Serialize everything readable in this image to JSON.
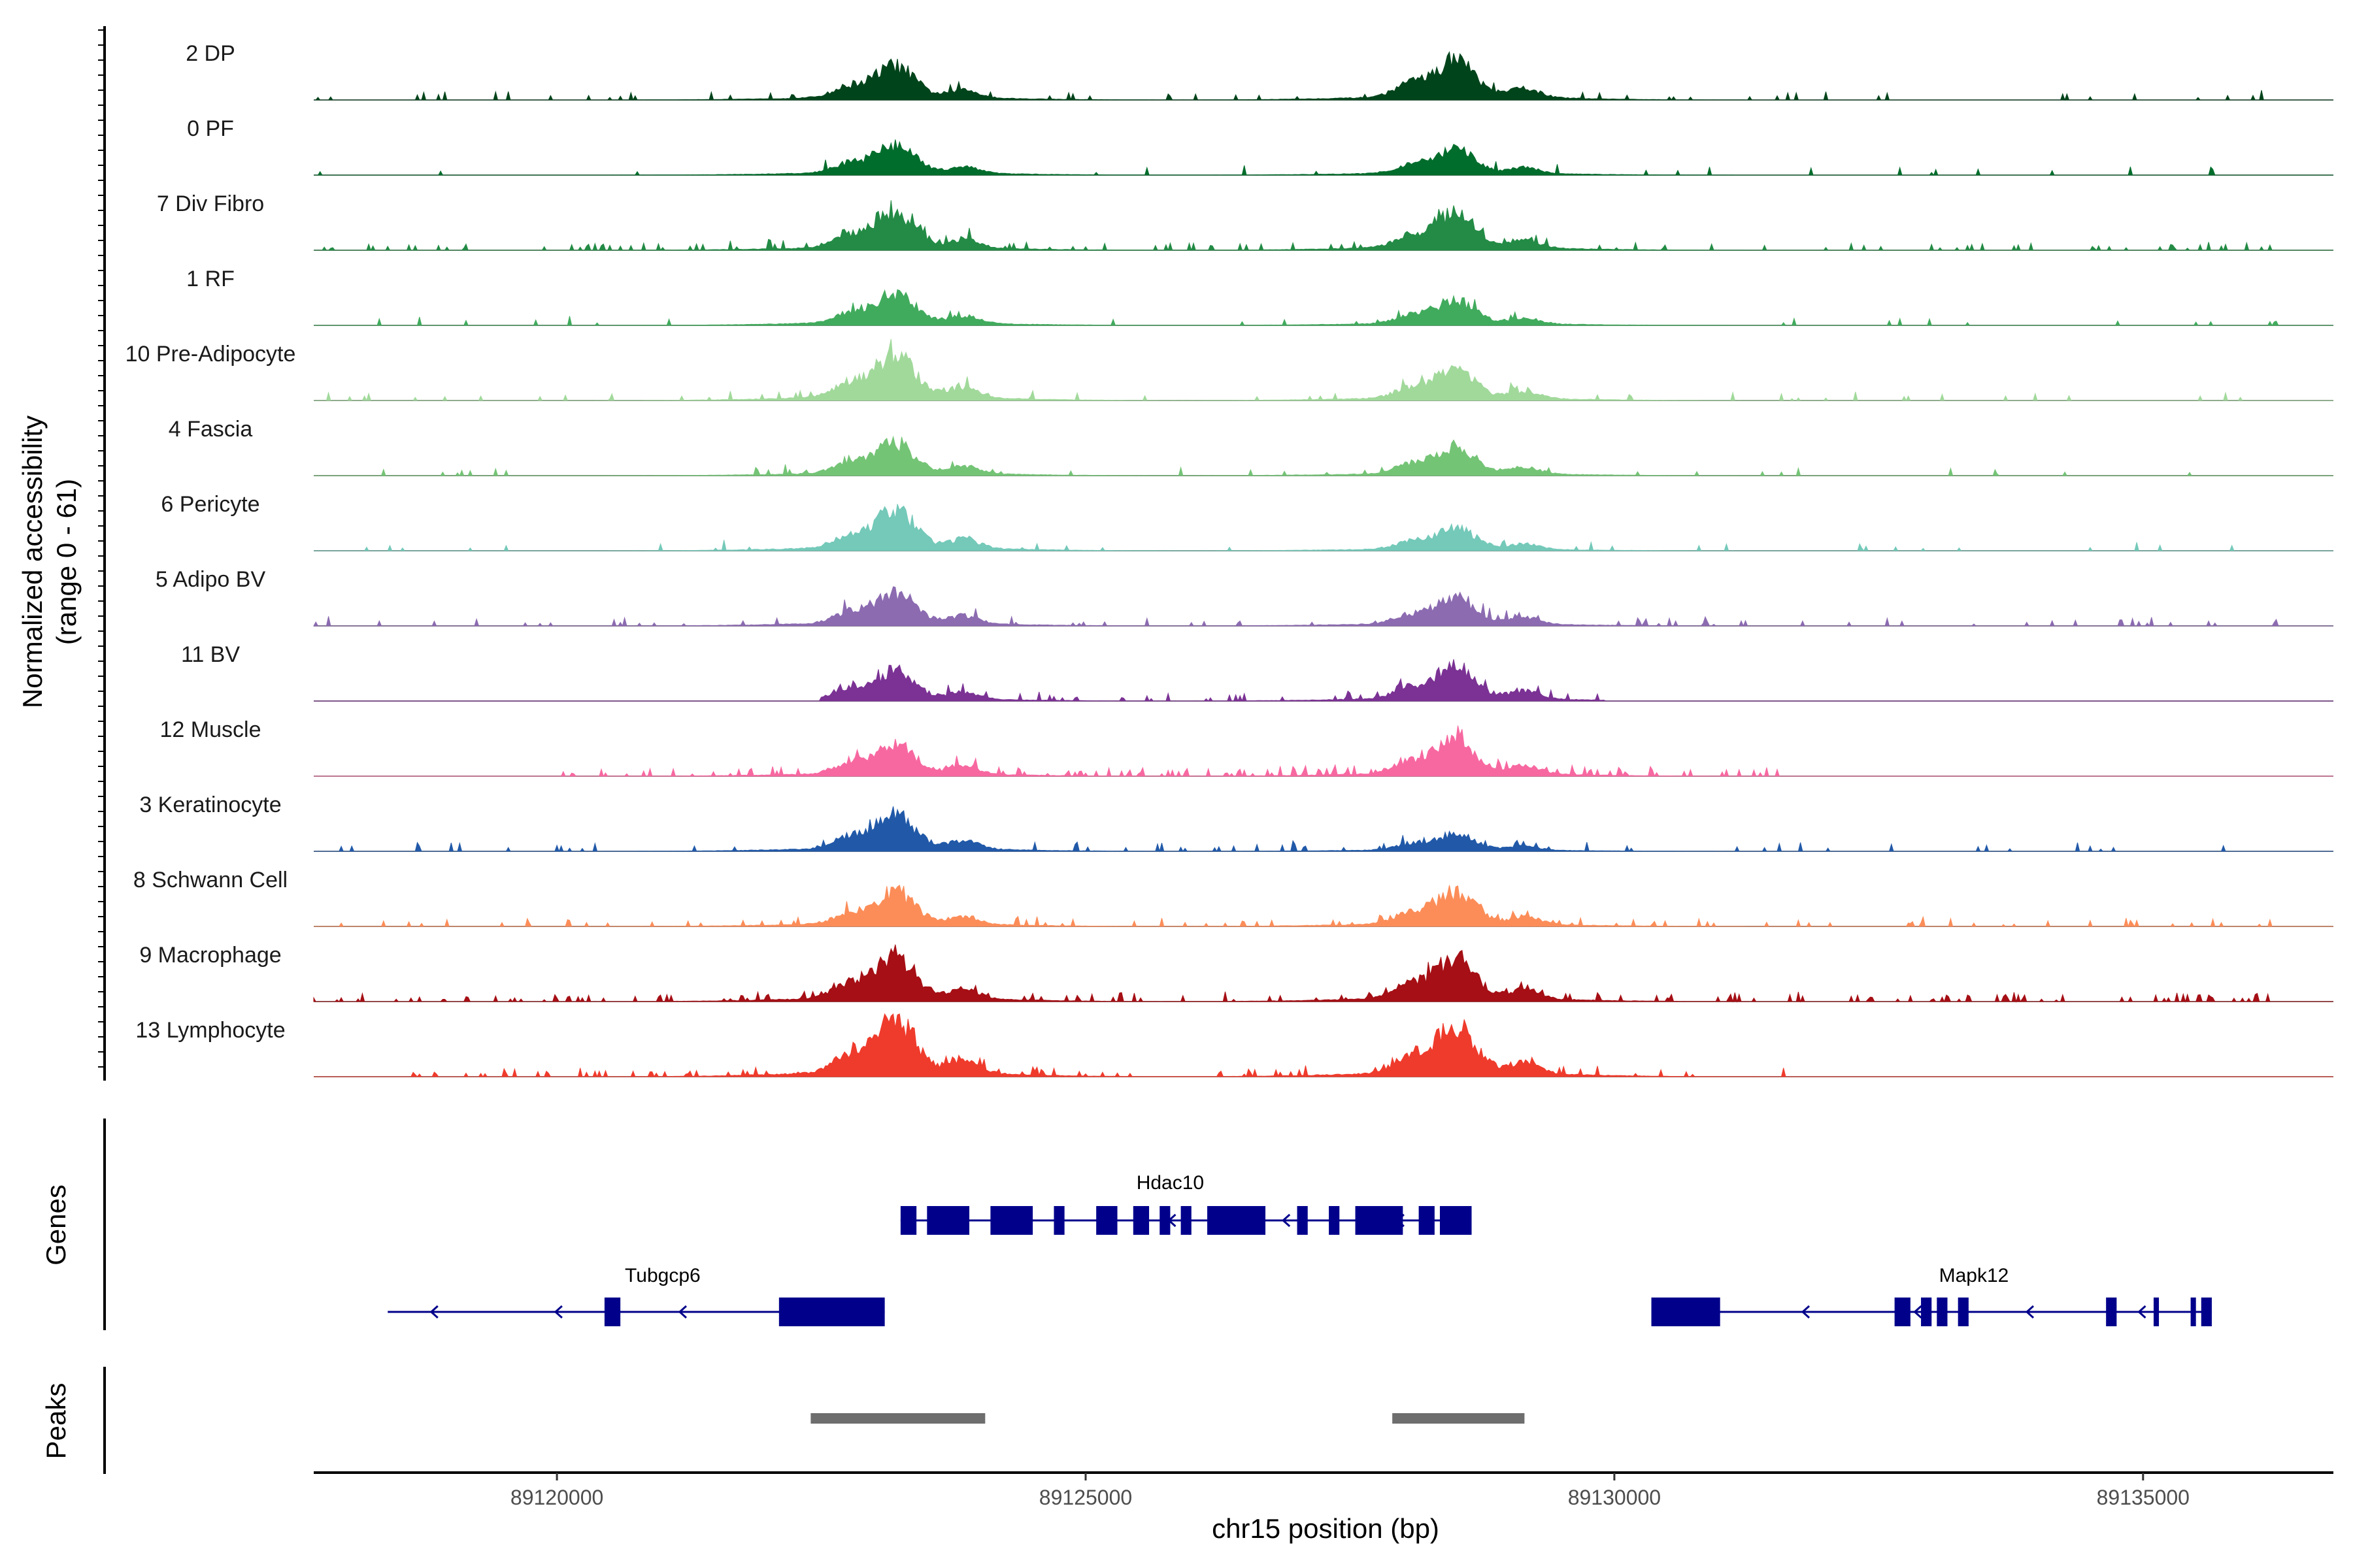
{
  "chart_data": {
    "type": "area",
    "title": "",
    "ylabel_line1": "Normalized accessibility",
    "ylabel_line2": "(range 0 - 61)",
    "y_range": [
      0,
      61
    ],
    "xlabel": "chr15 position (bp)",
    "chromosome": "chr15",
    "xlim": [
      89117700,
      89136800
    ],
    "x_ticks": [
      89120000,
      89125000,
      89130000,
      89135000
    ],
    "x_tick_labels": [
      "89120000",
      "89125000",
      "89130000",
      "89135000"
    ],
    "peak_centers": [
      89123200,
      89128500
    ],
    "tracks": [
      {
        "name": "2 DP",
        "color": "#00441b",
        "peak_heights": [
          30,
          35
        ],
        "noise": 0.05,
        "window": [
          89117700,
          89136300
        ]
      },
      {
        "name": "0 PF",
        "color": "#006d2c",
        "peak_heights": [
          26,
          22
        ],
        "noise": 0.03,
        "window": [
          89117700,
          89136300
        ]
      },
      {
        "name": "7 Div Fibro",
        "color": "#238b45",
        "peak_heights": [
          32,
          32
        ],
        "noise": 0.12,
        "window": [
          89117700,
          89136300
        ]
      },
      {
        "name": "1 RF",
        "color": "#41ab5d",
        "peak_heights": [
          28,
          22
        ],
        "noise": 0.03,
        "window": [
          89117700,
          89136300
        ]
      },
      {
        "name": "10 Pre-Adipocyte",
        "color": "#a1d99b",
        "peak_heights": [
          40,
          28
        ],
        "noise": 0.08,
        "window": [
          89117700,
          89136300
        ]
      },
      {
        "name": "4 Fascia",
        "color": "#74c476",
        "peak_heights": [
          28,
          25
        ],
        "noise": 0.04,
        "window": [
          89117700,
          89136300
        ]
      },
      {
        "name": "6 Pericyte",
        "color": "#74c9b9",
        "peak_heights": [
          35,
          20
        ],
        "noise": 0.04,
        "window": [
          89117700,
          89136300
        ]
      },
      {
        "name": "5 Adipo BV",
        "color": "#8c6bb1",
        "peak_heights": [
          30,
          25
        ],
        "noise": 0.08,
        "window": [
          89117700,
          89136300
        ]
      },
      {
        "name": "11 BV",
        "color": "#7b3294",
        "peak_heights": [
          26,
          30
        ],
        "noise": 0.15,
        "window": [
          89122500,
          89129900
        ]
      },
      {
        "name": "12 Muscle",
        "color": "#f768a1",
        "peak_heights": [
          28,
          32
        ],
        "noise": 0.22,
        "window": [
          89120000,
          89131600
        ]
      },
      {
        "name": "3 Keratinocyte",
        "color": "#2159a8",
        "peak_heights": [
          32,
          15
        ],
        "noise": 0.05,
        "window": [
          89117700,
          89136300
        ]
      },
      {
        "name": "8 Schwann Cell",
        "color": "#fc8d59",
        "peak_heights": [
          30,
          30
        ],
        "noise": 0.1,
        "window": [
          89117700,
          89136300
        ]
      },
      {
        "name": "9 Macrophage",
        "color": "#a50f15",
        "peak_heights": [
          40,
          38
        ],
        "noise": 0.15,
        "window": [
          89117700,
          89136300
        ]
      },
      {
        "name": "13 Lymphocyte",
        "color": "#ef3b2c",
        "peak_heights": [
          50,
          45
        ],
        "noise": 0.15,
        "window": [
          89118400,
          89131700
        ]
      }
    ],
    "genes_title": "Genes",
    "genes": [
      {
        "name": "Hdac10",
        "strand": "-",
        "start": 89123250,
        "end": 89128650,
        "row": 1,
        "exons": [
          [
            89123250,
            89123400
          ],
          [
            89123500,
            89123900
          ],
          [
            89124100,
            89124500
          ],
          [
            89124700,
            89124800
          ],
          [
            89125100,
            89125300
          ],
          [
            89125450,
            89125600
          ],
          [
            89125700,
            89125800
          ],
          [
            89125900,
            89126000
          ],
          [
            89126150,
            89126700
          ],
          [
            89127000,
            89127100
          ],
          [
            89127300,
            89127400
          ],
          [
            89127550,
            89128000
          ],
          [
            89128150,
            89128300
          ],
          [
            89128350,
            89128650
          ]
        ]
      },
      {
        "name": "Tubgcp6",
        "strand": "-",
        "start": 89118400,
        "end": 89123100,
        "row": 2,
        "exons": [
          [
            89120450,
            89120600
          ],
          [
            89122100,
            89123100
          ]
        ]
      },
      {
        "name": "Mapk12",
        "strand": "-",
        "start": 89130350,
        "end": 89135650,
        "row": 2,
        "exons": [
          [
            89130350,
            89131000
          ],
          [
            89132650,
            89132800
          ],
          [
            89132900,
            89133000
          ],
          [
            89133050,
            89133150
          ],
          [
            89133250,
            89133350
          ],
          [
            89134650,
            89134750
          ],
          [
            89135100,
            89135150
          ],
          [
            89135450,
            89135500
          ],
          [
            89135550,
            89135650
          ]
        ]
      }
    ],
    "peaks_title": "Peaks",
    "peaks": [
      [
        89122400,
        89124050
      ],
      [
        89127900,
        89129150
      ]
    ]
  }
}
